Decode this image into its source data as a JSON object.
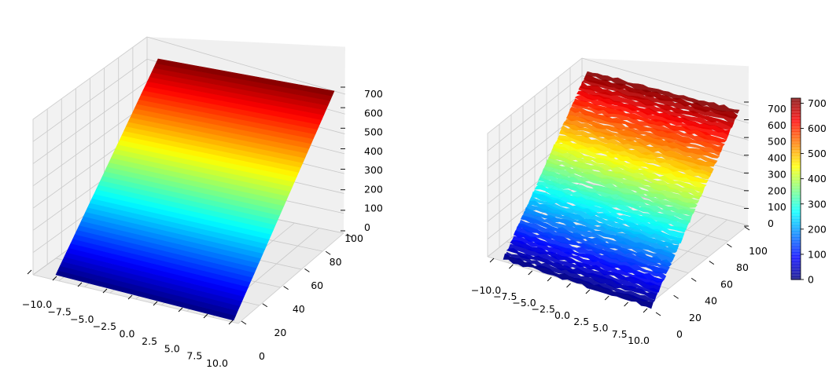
{
  "chart_data": [
    {
      "type": "surface3d",
      "surface": "smooth plane",
      "colormap": "jet",
      "colorbar": false,
      "x_range": [
        -10,
        10
      ],
      "y_range": [
        0,
        100
      ],
      "z_range": [
        0,
        720
      ],
      "z_model": "z = 7.2 * y",
      "x_ticks": [
        "−10.0",
        "−7.5",
        "−5.0",
        "−2.5",
        "0.0",
        "2.5",
        "5.0",
        "7.5",
        "10.0"
      ],
      "y_ticks": [
        "0",
        "20",
        "40",
        "60",
        "80",
        "100"
      ],
      "z_ticks": [
        "0",
        "100",
        "200",
        "300",
        "400",
        "500",
        "600",
        "700"
      ]
    },
    {
      "type": "surface3d",
      "surface": "noisy plane",
      "colormap": "jet",
      "colorbar": true,
      "x_range": [
        -10,
        10
      ],
      "y_range": [
        0,
        100
      ],
      "z_range": [
        0,
        720
      ],
      "z_model": "z = 7.2 * y + noise",
      "noise_amplitude": 15,
      "x_ticks": [
        "−10.0",
        "−7.5",
        "−5.0",
        "−2.5",
        "0.0",
        "2.5",
        "5.0",
        "7.5",
        "10.0"
      ],
      "y_ticks": [
        "0",
        "20",
        "40",
        "60",
        "80",
        "100"
      ],
      "z_ticks": [
        "0",
        "100",
        "200",
        "300",
        "400",
        "500",
        "600",
        "700"
      ],
      "colorbar_ticks": [
        "0",
        "100",
        "200",
        "300",
        "400",
        "500",
        "600",
        "700"
      ],
      "colorbar_range": [
        0,
        720
      ]
    }
  ]
}
